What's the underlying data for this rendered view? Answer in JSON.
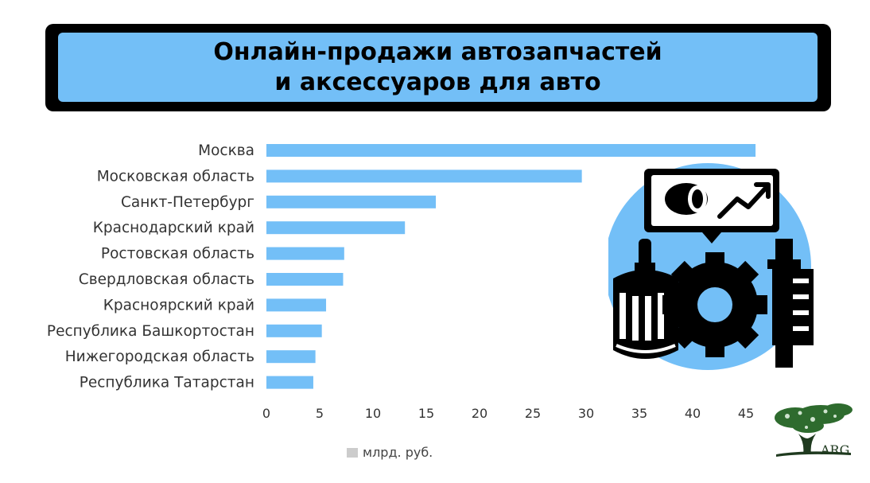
{
  "title": {
    "line1": "Онлайн-продажи автозапчастей",
    "line2": "и аксессуаров для авто"
  },
  "colors": {
    "bar": "#73bff7",
    "title_bg": "#73bff7",
    "frame": "#000000",
    "legend_swatch": "#cccccc"
  },
  "chart_data": {
    "type": "bar",
    "orientation": "horizontal",
    "categories": [
      "Москва",
      "Московская область",
      "Санкт-Петербург",
      "Краснодарский край",
      "Ростовская область",
      "Свердловская область",
      "Красноярский край",
      "Республика Башкортостан",
      "Нижегородская область",
      "Республика Татарстан"
    ],
    "series": [
      {
        "name": "млрд. руб.",
        "values": [
          45.9,
          29.6,
          15.9,
          13.0,
          7.3,
          7.2,
          5.6,
          5.2,
          4.6,
          4.4
        ]
      }
    ],
    "xticks": [
      0,
      5,
      10,
      15,
      20,
      25,
      30,
      35,
      40,
      45
    ],
    "xlim": [
      0,
      46
    ],
    "grid": false,
    "legend_position": "bottom"
  },
  "logo": {
    "text": "ARG",
    "icon": "tree-logo-icon"
  },
  "illustration": {
    "icons": [
      "auto-parts-growth-icon",
      "oil-filter-icon",
      "gear-icon",
      "spark-plug-icon",
      "trend-chart-icon"
    ]
  }
}
